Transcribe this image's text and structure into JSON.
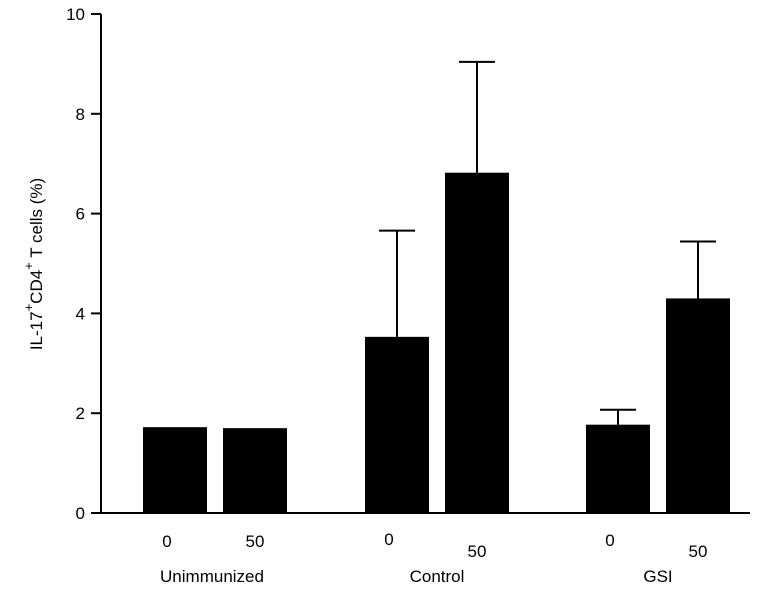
{
  "chart_data": {
    "type": "bar",
    "ylabel": {
      "prefix": "IL-17",
      "sup1": "+",
      "middle": "CD4",
      "sup2": "+",
      "suffix": " T cells (%)"
    },
    "ylim": [
      0,
      10
    ],
    "yticks": [
      {
        "value": 0,
        "label": "0"
      },
      {
        "value": 2,
        "label": "2"
      },
      {
        "value": 4,
        "label": "4"
      },
      {
        "value": 6,
        "label": "6"
      },
      {
        "value": 8,
        "label": "8"
      },
      {
        "value": 10,
        "label": "10"
      }
    ],
    "groups": [
      {
        "label": "Unimmunized",
        "bars": [
          {
            "label": "0",
            "value": 1.72,
            "error": 0
          },
          {
            "label": "50",
            "value": 1.7,
            "error": 0
          }
        ]
      },
      {
        "label": "Control",
        "bars": [
          {
            "label": "0",
            "value": 3.53,
            "error": 2.13
          },
          {
            "label": "50",
            "value": 6.82,
            "error": 2.22
          }
        ]
      },
      {
        "label": "GSI",
        "bars": [
          {
            "label": "0",
            "value": 1.77,
            "error": 0.3
          },
          {
            "label": "50",
            "value": 4.3,
            "error": 1.14
          }
        ]
      }
    ],
    "bar_color": "#000000",
    "grid": false,
    "legend": "none"
  }
}
